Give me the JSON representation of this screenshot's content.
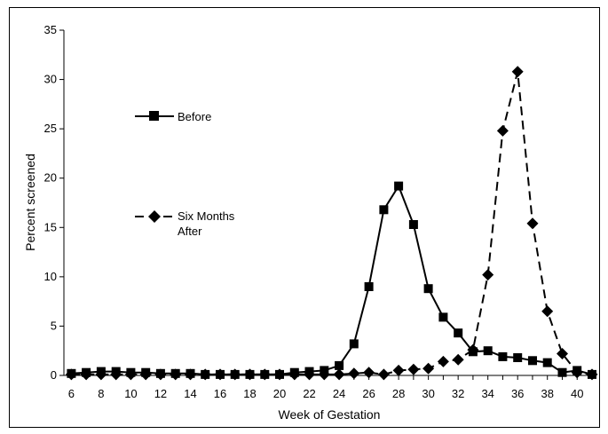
{
  "chart_data": {
    "type": "line",
    "xlabel": "Week of Gestation",
    "ylabel": "Percent screened",
    "xlim": [
      5.5,
      41
    ],
    "ylim": [
      0,
      35
    ],
    "x_ticks": [
      6,
      8,
      10,
      12,
      14,
      16,
      18,
      20,
      22,
      24,
      26,
      28,
      30,
      32,
      34,
      36,
      38,
      40
    ],
    "y_ticks": [
      0,
      5,
      10,
      15,
      20,
      25,
      30,
      35
    ],
    "grid": false,
    "legend_placement": "left-center",
    "x": [
      6,
      7,
      8,
      9,
      10,
      11,
      12,
      13,
      14,
      15,
      16,
      17,
      18,
      19,
      20,
      21,
      22,
      23,
      24,
      25,
      26,
      27,
      28,
      29,
      30,
      31,
      32,
      33,
      34,
      35,
      36,
      37,
      38,
      39,
      40,
      41
    ],
    "series": [
      {
        "name": "Before",
        "marker": "square",
        "line_style": "solid",
        "color": "#000000",
        "values": [
          0.2,
          0.3,
          0.4,
          0.4,
          0.3,
          0.3,
          0.2,
          0.2,
          0.2,
          0.1,
          0.1,
          0.1,
          0.1,
          0.1,
          0.1,
          0.3,
          0.4,
          0.5,
          1.0,
          3.2,
          9.0,
          16.8,
          19.2,
          15.3,
          8.8,
          5.9,
          4.3,
          2.4,
          2.5,
          1.9,
          1.8,
          1.5,
          1.3,
          0.3,
          0.5,
          0.1
        ]
      },
      {
        "name": "Six Months After",
        "name_lines": [
          "Six Months",
          "After"
        ],
        "marker": "diamond",
        "line_style": "dashed",
        "color": "#000000",
        "values": [
          0.1,
          0.1,
          0.1,
          0.1,
          0.1,
          0.1,
          0.1,
          0.1,
          0.1,
          0.1,
          0.1,
          0.1,
          0.1,
          0.1,
          0.1,
          0.1,
          0.1,
          0.1,
          0.1,
          0.2,
          0.3,
          0.1,
          0.5,
          0.6,
          0.7,
          1.4,
          1.6,
          2.6,
          10.2,
          24.8,
          30.8,
          15.4,
          6.5,
          2.2,
          0.3,
          0.1
        ]
      }
    ]
  }
}
